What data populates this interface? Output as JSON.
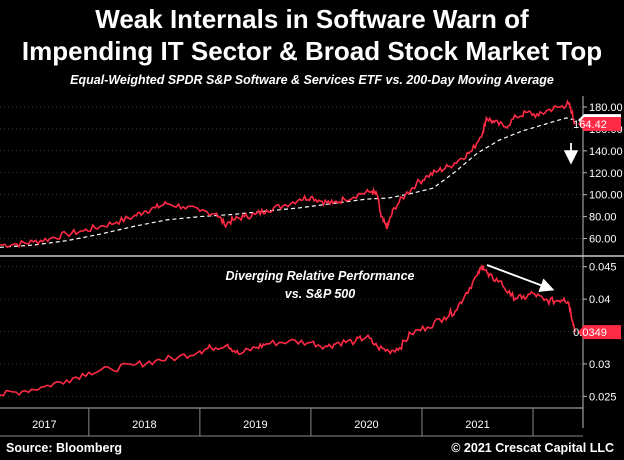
{
  "header": {
    "title_line1": "Weak Internals in Software Warn of",
    "title_line2": "Impending IT Sector & Broad Stock Market Top",
    "subtitle": "Equal-Weighted SPDR S&P Software & Services ETF vs. 200-Day Moving Average"
  },
  "footer": {
    "source": "Source: Bloomberg",
    "copyright": "© 2021 Crescat Capital LLC"
  },
  "colors": {
    "background": "#000000",
    "series": "#ff2a45",
    "moving_average": "#ffffff",
    "badge_price": "#ffffff",
    "badge_relative": "#ff2a45"
  },
  "chart_data": [
    {
      "type": "line",
      "title": "Equal-Weighted SPDR S&P Software & Services ETF vs. 200-Day Moving Average",
      "y_ticks": [
        60,
        80,
        100,
        120,
        140,
        160,
        180
      ],
      "y_tick_labels": [
        "60.00",
        "80.00",
        "100.00",
        "120.00",
        "140.00",
        "160.00",
        "180.00"
      ],
      "ylim": [
        45,
        190
      ],
      "xlim": [
        2016.7,
        2021.95
      ],
      "last_value_label": "164.42",
      "series": [
        {
          "kind": "price",
          "x": [
            2016.7,
            2016.85,
            2017.0,
            2017.15,
            2017.3,
            2017.45,
            2017.6,
            2017.75,
            2017.9,
            2018.0,
            2018.1,
            2018.2,
            2018.35,
            2018.5,
            2018.65,
            2018.72,
            2018.8,
            2018.9,
            2019.0,
            2019.1,
            2019.25,
            2019.4,
            2019.5,
            2019.6,
            2019.7,
            2019.8,
            2019.95,
            2020.05,
            2020.1,
            2020.13,
            2020.18,
            2020.2,
            2020.25,
            2020.35,
            2020.45,
            2020.55,
            2020.65,
            2020.75,
            2020.85,
            2020.95,
            2021.05,
            2021.08,
            2021.15,
            2021.25,
            2021.35,
            2021.45,
            2021.55,
            2021.65,
            2021.75,
            2021.82,
            2021.85,
            2021.88
          ],
          "values": [
            54,
            55,
            57,
            60,
            64,
            67,
            71,
            75,
            80,
            85,
            88,
            92,
            89,
            85,
            83,
            73,
            77,
            80,
            82,
            86,
            90,
            96,
            98,
            94,
            92,
            96,
            101,
            103,
            99,
            80,
            70,
            74,
            88,
            100,
            110,
            117,
            122,
            126,
            133,
            140,
            158,
            170,
            166,
            162,
            171,
            175,
            172,
            178,
            180,
            183,
            175,
            164.42
          ]
        },
        {
          "kind": "moving-average",
          "x": [
            2016.7,
            2017.0,
            2017.3,
            2017.6,
            2017.9,
            2018.2,
            2018.5,
            2018.8,
            2019.1,
            2019.4,
            2019.7,
            2020.0,
            2020.2,
            2020.4,
            2020.6,
            2020.8,
            2021.0,
            2021.2,
            2021.4,
            2021.6,
            2021.8,
            2021.88
          ],
          "values": [
            52,
            54,
            58,
            64,
            71,
            77,
            80,
            82,
            85,
            88,
            92,
            96,
            97,
            101,
            106,
            121,
            138,
            150,
            158,
            164,
            170,
            168
          ]
        }
      ]
    },
    {
      "type": "line",
      "title": "Diverging Relative Performance vs. S&P 500",
      "annotation_line1": "Diverging Relative Performance",
      "annotation_line2": "vs. S&P 500",
      "y_ticks": [
        0.025,
        0.03,
        0.035,
        0.04,
        0.045
      ],
      "y_tick_labels": [
        "0.025",
        "0.03",
        "0.035",
        "0.04",
        "0.045"
      ],
      "ylim": [
        0.0232,
        0.0465
      ],
      "xlim": [
        2016.7,
        2021.95
      ],
      "last_value_label": "0.0349",
      "series": [
        {
          "kind": "relative-performance",
          "x": [
            2016.7,
            2016.9,
            2017.1,
            2017.3,
            2017.5,
            2017.7,
            2017.9,
            2018.1,
            2018.3,
            2018.5,
            2018.6,
            2018.75,
            2018.85,
            2019.0,
            2019.1,
            2019.3,
            2019.5,
            2019.65,
            2019.75,
            2019.9,
            2020.0,
            2020.1,
            2020.2,
            2020.3,
            2020.4,
            2020.55,
            2020.7,
            2020.8,
            2020.9,
            2021.0,
            2021.05,
            2021.1,
            2021.2,
            2021.3,
            2021.4,
            2021.5,
            2021.6,
            2021.7,
            2021.78,
            2021.82,
            2021.86,
            2021.88
          ],
          "values": [
            0.0252,
            0.0258,
            0.0265,
            0.0275,
            0.0287,
            0.0292,
            0.0298,
            0.0305,
            0.031,
            0.032,
            0.0325,
            0.033,
            0.0315,
            0.0325,
            0.0331,
            0.0335,
            0.0333,
            0.0327,
            0.0333,
            0.0335,
            0.0342,
            0.0326,
            0.032,
            0.0325,
            0.0347,
            0.0357,
            0.0372,
            0.0382,
            0.041,
            0.0437,
            0.0452,
            0.0435,
            0.0428,
            0.0405,
            0.0401,
            0.0409,
            0.0398,
            0.0397,
            0.0401,
            0.0395,
            0.0365,
            0.0349
          ]
        }
      ]
    }
  ],
  "x_axis": {
    "categories": [
      "2017",
      "2018",
      "2019",
      "2020",
      "2021"
    ]
  }
}
